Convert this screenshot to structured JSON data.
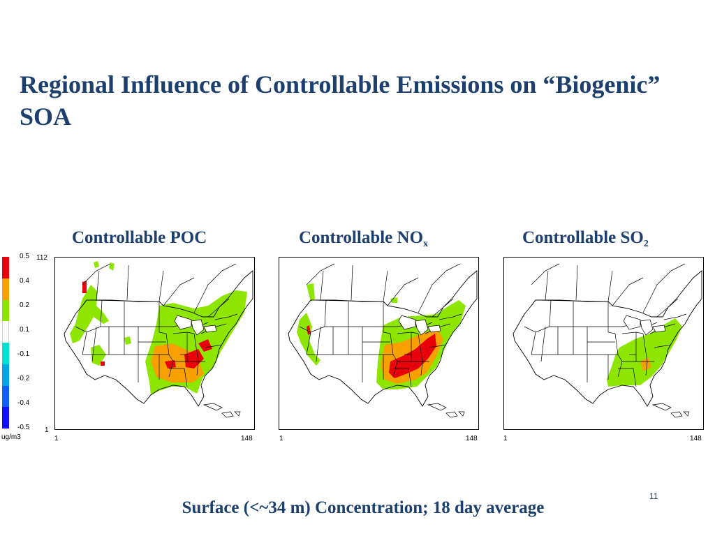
{
  "title": "Regional Influence of Controllable Emissions on “Biogenic” SOA",
  "panels": [
    {
      "label": "Controllable POC",
      "sub": "",
      "key": "poc"
    },
    {
      "label": "Controllable NO",
      "sub": "x",
      "key": "nox"
    },
    {
      "label": "Controllable SO",
      "sub": "2",
      "key": "so2"
    }
  ],
  "legend": {
    "unit": "ug/m3",
    "ticks": [
      "0.5",
      "0.4",
      "0.2",
      "0.1",
      "-0.1",
      "-0.2",
      "-0.4",
      "-0.5"
    ],
    "colors": [
      "#e8000b",
      "#f7a000",
      "#8ee600",
      "#ffffff",
      "#00e0d0",
      "#00a6e6",
      "#1060ff",
      "#1010ff"
    ]
  },
  "axes": {
    "x_min": "1",
    "x_max": "148",
    "y_min": "1",
    "y_max": "112"
  },
  "footer": "Surface (<~34 m) Concentration; 18 day average",
  "slide_number": "11"
}
